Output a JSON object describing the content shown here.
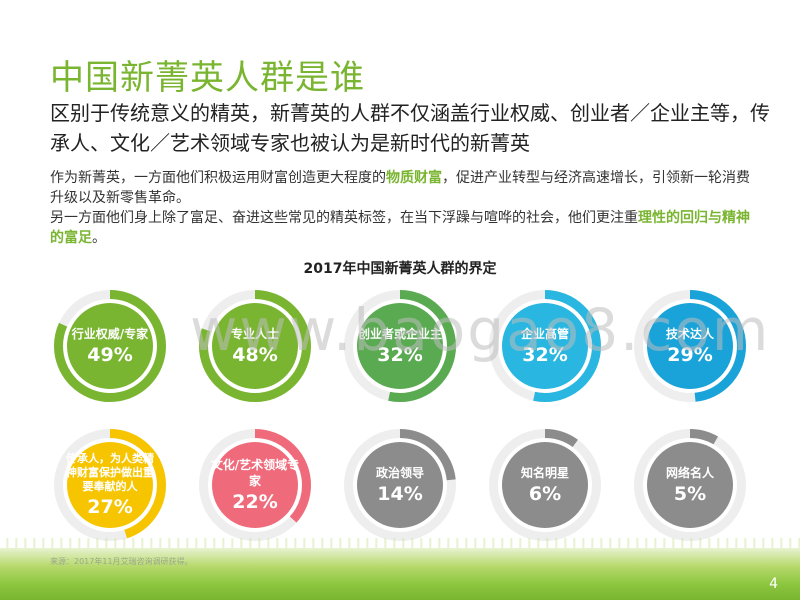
{
  "title": "中国新菁英人群是谁",
  "subtitle": "区别于传统意义的精英，新菁英的人群不仅涵盖行业权威、创业者／企业主等，传承人、文化／艺术领域专家也被认为是新时代的新菁英",
  "body": {
    "p1_a": "作为新菁英，一方面他们积极运用财富创造更大程度的",
    "p1_hl": "物质财富",
    "p1_b": "，促进产业转型与经济高速增长，引领新一轮消费升级以及新零售革命。",
    "p2_a": "另一方面他们身上除了富足、奋进这些常见的精英标签，在当下浮躁与喧哗的社会，他们更注重",
    "p2_hl": "理性的回归与精神的富足",
    "p2_b": "。"
  },
  "chart_title": "2017年中国新菁英人群的界定",
  "watermark": "www.baogao8.com",
  "source": "来源：2017年11月艾瑞咨询调研获得。",
  "page_number": "4",
  "chart_data": {
    "type": "donut",
    "title": "2017年中国新菁英人群的界定",
    "items": [
      {
        "label": "行业权威/专家",
        "value": 49,
        "display": "49%",
        "color": "#7ab531"
      },
      {
        "label": "专业人士",
        "value": 48,
        "display": "48%",
        "color": "#7ab531"
      },
      {
        "label": "创业者或企业主",
        "value": 32,
        "display": "32%",
        "color": "#5aaa52"
      },
      {
        "label": "企业高管",
        "value": 32,
        "display": "32%",
        "color": "#29b6e0"
      },
      {
        "label": "技术达人",
        "value": 29,
        "display": "29%",
        "color": "#1aa3d9"
      },
      {
        "label": "传承人，为人类精神财富保护做出重要奉献的人",
        "value": 27,
        "display": "27%",
        "color": "#f7c500"
      },
      {
        "label": "文化/艺术领域专家",
        "value": 22,
        "display": "22%",
        "color": "#ef6b7b"
      },
      {
        "label": "政治领导",
        "value": 14,
        "display": "14%",
        "color": "#8c8c8c"
      },
      {
        "label": "知名明星",
        "value": 6,
        "display": "6%",
        "color": "#8c8c8c"
      },
      {
        "label": "网络名人",
        "value": 5,
        "display": "5%",
        "color": "#8c8c8c"
      }
    ]
  }
}
